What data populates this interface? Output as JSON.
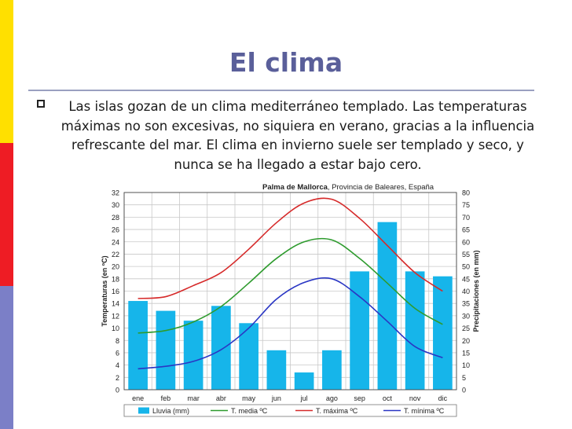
{
  "slide": {
    "title": "El clima",
    "bullet_text": "Las islas gozan de un clima mediterráneo templado.  Las temperaturas máximas no son excesivas, no siquiera en verano, gracias a la influencia refrescante del mar.  El clima en invierno suele ser templado y seco, y nunca se ha llegado a estar bajo cero."
  },
  "colors": {
    "band_top": "#ffe000",
    "band_middle": "#ee1c24",
    "band_bottom": "#7b7fc7",
    "title": "#5a5f9a"
  },
  "chart_data": {
    "type": "bar",
    "title_bold": "Palma de Mallorca",
    "title_rest": ", Provincia de Baleares, España",
    "categories": [
      "ene",
      "feb",
      "mar",
      "abr",
      "may",
      "jun",
      "jul",
      "ago",
      "sep",
      "oct",
      "nov",
      "dic"
    ],
    "ylabel_left": "Temperaturas (en ºC)",
    "ylabel_right": "Precipitaciones (en mm)",
    "ylim_left": [
      0,
      32
    ],
    "ylim_right": [
      0,
      80
    ],
    "yticks_left": [
      "0",
      "2",
      "4",
      "6",
      "8",
      "10",
      "12",
      "14",
      "16",
      "18",
      "20",
      "22",
      "24",
      "26",
      "28",
      "30",
      "32"
    ],
    "yticks_right": [
      "0",
      "5",
      "10",
      "15",
      "20",
      "25",
      "30",
      "35",
      "40",
      "45",
      "50",
      "55",
      "60",
      "65",
      "70",
      "75",
      "80"
    ],
    "grid": true,
    "legend_position": "bottom",
    "bars": {
      "name": "Lluvia (mm)",
      "axis": "right",
      "color": "#16b5ea",
      "values": [
        36,
        32,
        28,
        34,
        27,
        16,
        7,
        16,
        48,
        68,
        48,
        46
      ]
    },
    "lines": [
      {
        "name": "T. media ºC",
        "axis": "left",
        "color": "#2e9b2e",
        "values": [
          9.2,
          9.6,
          11,
          13.5,
          17.3,
          21.3,
          24,
          24.3,
          21.3,
          17.3,
          13.2,
          10.6
        ]
      },
      {
        "name": "T. máxima ºC",
        "axis": "left",
        "color": "#d62a2a",
        "values": [
          14.8,
          15.1,
          16.9,
          19,
          22.8,
          27.1,
          30.3,
          30.9,
          27.8,
          23.4,
          19,
          16
        ]
      },
      {
        "name": "T. mínima ºC",
        "axis": "left",
        "color": "#2a36c4",
        "values": [
          3.4,
          3.8,
          4.6,
          6.5,
          10,
          14.7,
          17.4,
          18,
          15.1,
          11.1,
          7,
          5.2
        ]
      }
    ]
  }
}
